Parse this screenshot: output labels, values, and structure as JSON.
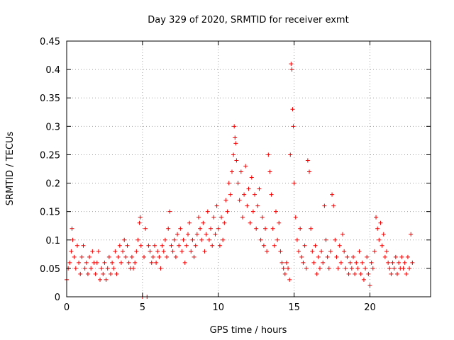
{
  "chart_data": {
    "type": "scatter",
    "title": "Day 329 of 2020, SRMTID for receiver exmt",
    "xlabel": "GPS time / hours",
    "ylabel": "SRMTID / TECUs",
    "xlim": [
      0,
      24
    ],
    "ylim": [
      0,
      0.45
    ],
    "x_ticks": [
      0,
      5,
      10,
      15,
      20
    ],
    "y_ticks": [
      0,
      0.05,
      0.1,
      0.15,
      0.2,
      0.25,
      0.3,
      0.35,
      0.4,
      0.45
    ],
    "x_tick_labels": [
      "0",
      "5",
      "10",
      "15",
      "20"
    ],
    "y_tick_labels": [
      "0",
      "0.05",
      "0.1",
      "0.15",
      "0.2",
      "0.25",
      "0.3",
      "0.35",
      "0.4",
      "0.45"
    ],
    "grid": true,
    "marker": "+",
    "color": "#ee0000",
    "series": [
      {
        "name": "SRMTID",
        "points": [
          [
            0.0,
            0.03
          ],
          [
            0.1,
            0.05
          ],
          [
            0.2,
            0.06
          ],
          [
            0.3,
            0.08
          ],
          [
            0.35,
            0.12
          ],
          [
            0.4,
            0.1
          ],
          [
            0.5,
            0.07
          ],
          [
            0.6,
            0.05
          ],
          [
            0.7,
            0.09
          ],
          [
            0.8,
            0.06
          ],
          [
            0.9,
            0.04
          ],
          [
            1.0,
            0.07
          ],
          [
            1.1,
            0.09
          ],
          [
            1.2,
            0.05
          ],
          [
            1.3,
            0.06
          ],
          [
            1.4,
            0.04
          ],
          [
            1.5,
            0.07
          ],
          [
            1.6,
            0.05
          ],
          [
            1.7,
            0.08
          ],
          [
            1.8,
            0.06
          ],
          [
            1.9,
            0.04
          ],
          [
            2.0,
            0.06
          ],
          [
            2.1,
            0.08
          ],
          [
            2.2,
            0.03
          ],
          [
            2.3,
            0.05
          ],
          [
            2.4,
            0.04
          ],
          [
            2.5,
            0.06
          ],
          [
            2.6,
            0.03
          ],
          [
            2.7,
            0.05
          ],
          [
            2.8,
            0.07
          ],
          [
            2.9,
            0.04
          ],
          [
            3.0,
            0.06
          ],
          [
            3.1,
            0.05
          ],
          [
            3.2,
            0.08
          ],
          [
            3.3,
            0.04
          ],
          [
            3.4,
            0.07
          ],
          [
            3.5,
            0.09
          ],
          [
            3.6,
            0.06
          ],
          [
            3.7,
            0.08
          ],
          [
            3.8,
            0.1
          ],
          [
            3.9,
            0.07
          ],
          [
            4.0,
            0.09
          ],
          [
            4.1,
            0.06
          ],
          [
            4.2,
            0.05
          ],
          [
            4.3,
            0.07
          ],
          [
            4.4,
            0.05
          ],
          [
            4.5,
            0.06
          ],
          [
            4.6,
            0.08
          ],
          [
            4.7,
            0.1
          ],
          [
            4.8,
            0.13
          ],
          [
            4.85,
            0.14
          ],
          [
            4.9,
            0.09
          ],
          [
            5.0,
            0.0
          ],
          [
            5.1,
            0.07
          ],
          [
            5.2,
            0.12
          ],
          [
            5.3,
            0.0
          ],
          [
            5.4,
            0.09
          ],
          [
            5.5,
            0.08
          ],
          [
            5.6,
            0.06
          ],
          [
            5.7,
            0.07
          ],
          [
            5.8,
            0.09
          ],
          [
            5.9,
            0.06
          ],
          [
            6.0,
            0.08
          ],
          [
            6.1,
            0.07
          ],
          [
            6.2,
            0.05
          ],
          [
            6.3,
            0.09
          ],
          [
            6.4,
            0.08
          ],
          [
            6.5,
            0.1
          ],
          [
            6.6,
            0.07
          ],
          [
            6.7,
            0.12
          ],
          [
            6.8,
            0.15
          ],
          [
            6.9,
            0.09
          ],
          [
            7.0,
            0.08
          ],
          [
            7.1,
            0.1
          ],
          [
            7.2,
            0.07
          ],
          [
            7.3,
            0.11
          ],
          [
            7.4,
            0.09
          ],
          [
            7.5,
            0.12
          ],
          [
            7.6,
            0.08
          ],
          [
            7.7,
            0.1
          ],
          [
            7.8,
            0.06
          ],
          [
            7.9,
            0.09
          ],
          [
            8.0,
            0.11
          ],
          [
            8.1,
            0.13
          ],
          [
            8.2,
            0.08
          ],
          [
            8.3,
            0.1
          ],
          [
            8.4,
            0.07
          ],
          [
            8.5,
            0.09
          ],
          [
            8.6,
            0.11
          ],
          [
            8.7,
            0.14
          ],
          [
            8.8,
            0.12
          ],
          [
            8.9,
            0.1
          ],
          [
            9.0,
            0.13
          ],
          [
            9.1,
            0.08
          ],
          [
            9.2,
            0.11
          ],
          [
            9.3,
            0.15
          ],
          [
            9.4,
            0.1
          ],
          [
            9.5,
            0.12
          ],
          [
            9.6,
            0.09
          ],
          [
            9.7,
            0.14
          ],
          [
            9.8,
            0.11
          ],
          [
            9.9,
            0.16
          ],
          [
            10.0,
            0.12
          ],
          [
            10.1,
            0.09
          ],
          [
            10.2,
            0.14
          ],
          [
            10.3,
            0.1
          ],
          [
            10.4,
            0.13
          ],
          [
            10.5,
            0.17
          ],
          [
            10.6,
            0.15
          ],
          [
            10.7,
            0.2
          ],
          [
            10.8,
            0.18
          ],
          [
            10.9,
            0.22
          ],
          [
            11.0,
            0.25
          ],
          [
            11.05,
            0.3
          ],
          [
            11.1,
            0.28
          ],
          [
            11.15,
            0.27
          ],
          [
            11.2,
            0.24
          ],
          [
            11.3,
            0.2
          ],
          [
            11.4,
            0.17
          ],
          [
            11.5,
            0.22
          ],
          [
            11.6,
            0.14
          ],
          [
            11.7,
            0.18
          ],
          [
            11.8,
            0.23
          ],
          [
            11.9,
            0.16
          ],
          [
            12.0,
            0.19
          ],
          [
            12.1,
            0.13
          ],
          [
            12.2,
            0.21
          ],
          [
            12.3,
            0.15
          ],
          [
            12.4,
            0.18
          ],
          [
            12.5,
            0.12
          ],
          [
            12.6,
            0.16
          ],
          [
            12.7,
            0.19
          ],
          [
            12.8,
            0.1
          ],
          [
            12.9,
            0.14
          ],
          [
            13.0,
            0.09
          ],
          [
            13.1,
            0.12
          ],
          [
            13.2,
            0.08
          ],
          [
            13.3,
            0.25
          ],
          [
            13.4,
            0.22
          ],
          [
            13.5,
            0.18
          ],
          [
            13.6,
            0.12
          ],
          [
            13.7,
            0.09
          ],
          [
            13.8,
            0.15
          ],
          [
            13.9,
            0.1
          ],
          [
            14.0,
            0.13
          ],
          [
            14.1,
            0.08
          ],
          [
            14.2,
            0.06
          ],
          [
            14.3,
            0.05
          ],
          [
            14.4,
            0.04
          ],
          [
            14.5,
            0.06
          ],
          [
            14.6,
            0.05
          ],
          [
            14.7,
            0.03
          ],
          [
            14.75,
            0.25
          ],
          [
            14.8,
            0.41
          ],
          [
            14.85,
            0.4
          ],
          [
            14.9,
            0.33
          ],
          [
            14.95,
            0.3
          ],
          [
            15.0,
            0.2
          ],
          [
            15.1,
            0.14
          ],
          [
            15.2,
            0.1
          ],
          [
            15.3,
            0.08
          ],
          [
            15.4,
            0.12
          ],
          [
            15.5,
            0.07
          ],
          [
            15.6,
            0.06
          ],
          [
            15.7,
            0.09
          ],
          [
            15.8,
            0.05
          ],
          [
            15.9,
            0.24
          ],
          [
            16.0,
            0.22
          ],
          [
            16.1,
            0.12
          ],
          [
            16.2,
            0.08
          ],
          [
            16.3,
            0.06
          ],
          [
            16.4,
            0.09
          ],
          [
            16.5,
            0.04
          ],
          [
            16.6,
            0.07
          ],
          [
            16.7,
            0.05
          ],
          [
            16.8,
            0.08
          ],
          [
            16.9,
            0.06
          ],
          [
            17.0,
            0.16
          ],
          [
            17.1,
            0.1
          ],
          [
            17.2,
            0.07
          ],
          [
            17.3,
            0.05
          ],
          [
            17.4,
            0.08
          ],
          [
            17.5,
            0.18
          ],
          [
            17.6,
            0.16
          ],
          [
            17.7,
            0.1
          ],
          [
            17.8,
            0.07
          ],
          [
            17.9,
            0.05
          ],
          [
            18.0,
            0.09
          ],
          [
            18.1,
            0.06
          ],
          [
            18.2,
            0.11
          ],
          [
            18.3,
            0.08
          ],
          [
            18.4,
            0.05
          ],
          [
            18.5,
            0.07
          ],
          [
            18.6,
            0.04
          ],
          [
            18.7,
            0.06
          ],
          [
            18.8,
            0.05
          ],
          [
            18.9,
            0.07
          ],
          [
            19.0,
            0.04
          ],
          [
            19.1,
            0.06
          ],
          [
            19.2,
            0.05
          ],
          [
            19.3,
            0.08
          ],
          [
            19.4,
            0.04
          ],
          [
            19.5,
            0.06
          ],
          [
            19.6,
            0.03
          ],
          [
            19.7,
            0.05
          ],
          [
            19.8,
            0.07
          ],
          [
            19.9,
            0.04
          ],
          [
            20.0,
            0.02
          ],
          [
            20.1,
            0.06
          ],
          [
            20.2,
            0.05
          ],
          [
            20.3,
            0.08
          ],
          [
            20.4,
            0.14
          ],
          [
            20.5,
            0.12
          ],
          [
            20.6,
            0.1
          ],
          [
            20.7,
            0.13
          ],
          [
            20.8,
            0.09
          ],
          [
            20.9,
            0.11
          ],
          [
            21.0,
            0.07
          ],
          [
            21.1,
            0.08
          ],
          [
            21.2,
            0.06
          ],
          [
            21.3,
            0.05
          ],
          [
            21.4,
            0.04
          ],
          [
            21.5,
            0.06
          ],
          [
            21.6,
            0.05
          ],
          [
            21.7,
            0.07
          ],
          [
            21.8,
            0.04
          ],
          [
            21.9,
            0.06
          ],
          [
            22.0,
            0.05
          ],
          [
            22.1,
            0.07
          ],
          [
            22.2,
            0.05
          ],
          [
            22.3,
            0.06
          ],
          [
            22.4,
            0.04
          ],
          [
            22.5,
            0.07
          ],
          [
            22.6,
            0.05
          ],
          [
            22.7,
            0.11
          ],
          [
            22.8,
            0.06
          ]
        ]
      }
    ]
  }
}
